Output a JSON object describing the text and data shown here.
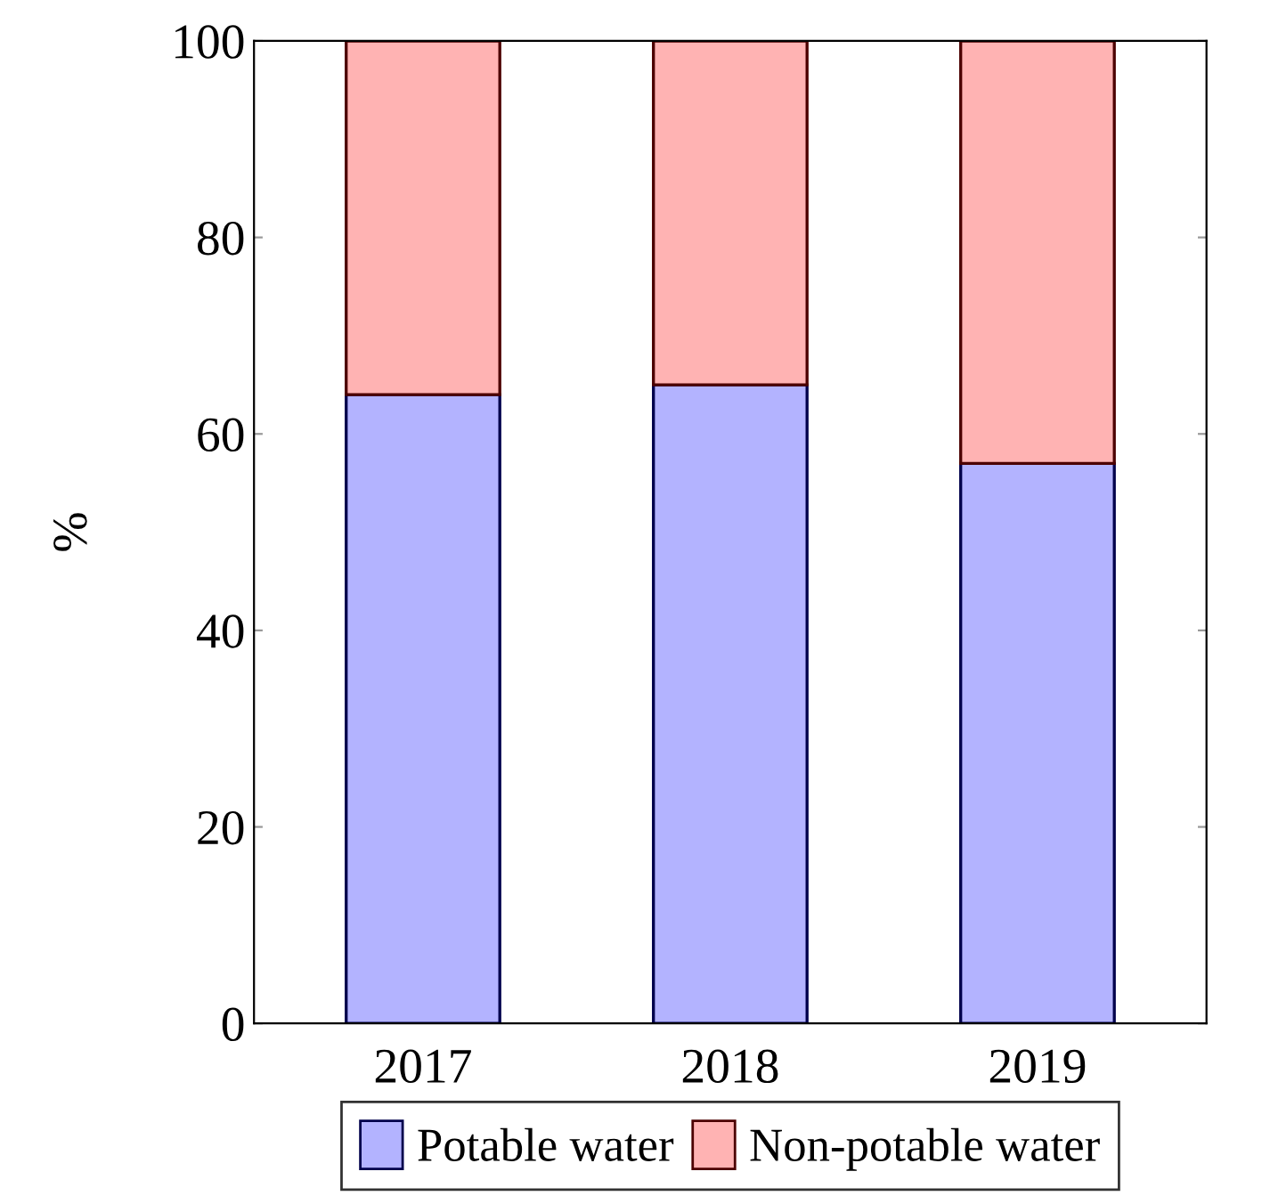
{
  "chart_data": {
    "type": "bar",
    "stacked": true,
    "ylabel": "%",
    "categories": [
      "2017",
      "2018",
      "2019"
    ],
    "series": [
      {
        "name": "Potable water",
        "color": "#b3b3ff",
        "values": [
          64,
          65,
          57
        ]
      },
      {
        "name": "Non-potable water",
        "color": "#ffb3b3",
        "values": [
          36,
          35,
          43
        ]
      }
    ],
    "ylim": [
      0,
      100
    ],
    "yticks": [
      0,
      20,
      40,
      60,
      80,
      100
    ],
    "grid": false,
    "legend": "bottom"
  }
}
